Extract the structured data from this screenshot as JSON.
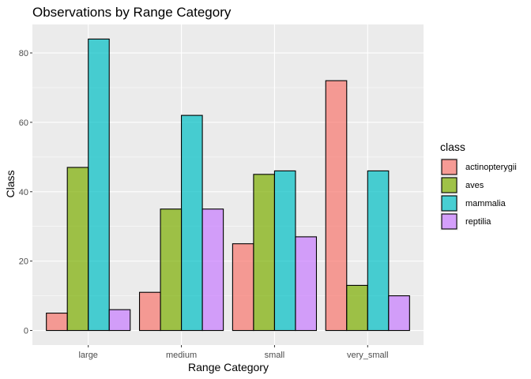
{
  "chart_data": {
    "type": "bar",
    "title": "Observations by Range Category",
    "xlabel": "Range Category",
    "ylabel": "Class",
    "categories": [
      "large",
      "medium",
      "small",
      "very_small"
    ],
    "ylim": [
      -4.2,
      88.2
    ],
    "yticks": [
      0,
      20,
      40,
      60,
      80
    ],
    "grid": true,
    "legend_position": "right",
    "legend_title": "class",
    "series": [
      {
        "name": "actinopterygii",
        "color": "#F8766D",
        "values": [
          5,
          11,
          25,
          72
        ]
      },
      {
        "name": "aves",
        "color": "#7CAE00",
        "values": [
          47,
          35,
          45,
          13
        ]
      },
      {
        "name": "mammalia",
        "color": "#00BFC4",
        "values": [
          84,
          62,
          46,
          46
        ]
      },
      {
        "name": "reptilia",
        "color": "#C77CFF",
        "values": [
          6,
          35,
          27,
          10
        ]
      }
    ]
  }
}
